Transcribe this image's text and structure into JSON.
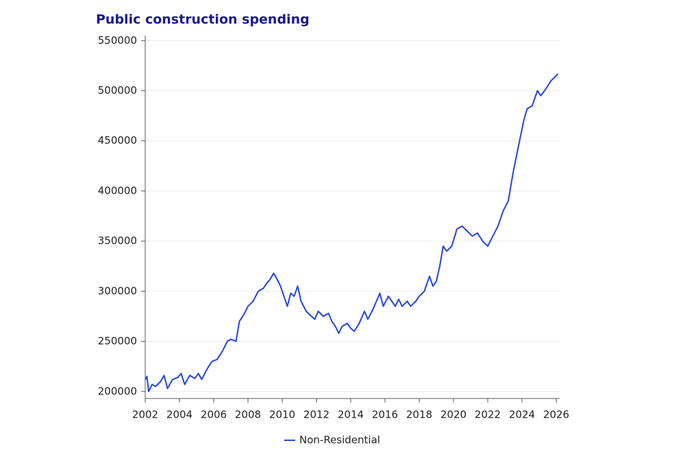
{
  "chart_data": {
    "type": "line",
    "title": "Public construction spending",
    "x": [
      2002.0,
      2002.1,
      2002.2,
      2002.4,
      2002.6,
      2002.9,
      2003.1,
      2003.3,
      2003.6,
      2003.9,
      2004.1,
      2004.3,
      2004.6,
      2004.9,
      2005.1,
      2005.3,
      2005.6,
      2005.9,
      2006.2,
      2006.5,
      2006.8,
      2007.0,
      2007.3,
      2007.5,
      2007.8,
      2008.0,
      2008.3,
      2008.6,
      2008.9,
      2009.1,
      2009.3,
      2009.5,
      2009.7,
      2009.9,
      2010.1,
      2010.3,
      2010.5,
      2010.7,
      2010.9,
      2011.1,
      2011.4,
      2011.7,
      2011.9,
      2012.1,
      2012.4,
      2012.7,
      2012.9,
      2013.1,
      2013.3,
      2013.5,
      2013.8,
      2014.0,
      2014.2,
      2014.5,
      2014.8,
      2015.0,
      2015.3,
      2015.5,
      2015.7,
      2015.9,
      2016.2,
      2016.4,
      2016.6,
      2016.8,
      2017.0,
      2017.3,
      2017.5,
      2017.8,
      2018.0,
      2018.3,
      2018.6,
      2018.8,
      2019.0,
      2019.2,
      2019.4,
      2019.6,
      2019.9,
      2020.2,
      2020.5,
      2020.8,
      2021.1,
      2021.4,
      2021.7,
      2022.0,
      2022.3,
      2022.6,
      2022.9,
      2023.2,
      2023.5,
      2023.8,
      2024.1,
      2024.3,
      2024.6,
      2024.9,
      2025.1,
      2025.4,
      2025.7,
      2026.0,
      2026.1
    ],
    "series": [
      {
        "name": "Non-Residential",
        "color": "#2244dd",
        "values": [
          212000,
          215000,
          200000,
          207000,
          205000,
          210000,
          216000,
          203000,
          212000,
          214000,
          218000,
          207000,
          216000,
          213000,
          218000,
          212000,
          222000,
          230000,
          232000,
          240000,
          250000,
          252000,
          250000,
          270000,
          278000,
          285000,
          290000,
          300000,
          303000,
          308000,
          312000,
          318000,
          312000,
          305000,
          295000,
          285000,
          298000,
          295000,
          305000,
          290000,
          280000,
          275000,
          272000,
          280000,
          275000,
          278000,
          270000,
          265000,
          258000,
          265000,
          268000,
          263000,
          260000,
          268000,
          280000,
          272000,
          282000,
          290000,
          298000,
          285000,
          295000,
          290000,
          285000,
          292000,
          285000,
          290000,
          285000,
          290000,
          295000,
          300000,
          315000,
          305000,
          310000,
          325000,
          345000,
          340000,
          345000,
          362000,
          365000,
          360000,
          355000,
          358000,
          350000,
          345000,
          355000,
          365000,
          380000,
          390000,
          420000,
          445000,
          470000,
          482000,
          485000,
          500000,
          495000,
          502000,
          510000,
          515000,
          517000
        ]
      }
    ],
    "xlim": [
      2002,
      2026.2
    ],
    "ylim": [
      193000,
      555000
    ],
    "xticks": [
      2002,
      2004,
      2006,
      2008,
      2010,
      2012,
      2014,
      2016,
      2018,
      2020,
      2022,
      2024,
      2026
    ],
    "yticks": [
      200000,
      250000,
      300000,
      350000,
      400000,
      450000,
      500000,
      550000
    ],
    "grid": true
  }
}
